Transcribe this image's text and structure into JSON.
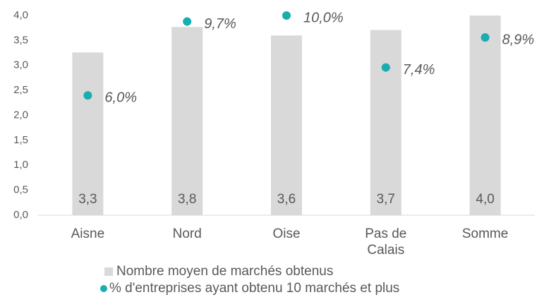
{
  "chart_data": {
    "type": "bar",
    "categories": [
      "Aisne",
      "Nord",
      "Oise",
      "Pas de Calais",
      "Somme"
    ],
    "series": [
      {
        "name": "Nombre moyen de marchés obtenus",
        "type": "bar",
        "color": "#d9d9d9",
        "values": [
          3.26,
          3.77,
          3.6,
          3.71,
          4.0
        ],
        "value_labels": [
          "3,3",
          "3,8",
          "3,6",
          "3,7",
          "4,0"
        ]
      },
      {
        "name": "% d'entreprises ayant obtenu 10 marchés et plus",
        "type": "scatter",
        "axis": "y2",
        "color": "#19adb0",
        "values": [
          6.0,
          9.7,
          10.0,
          7.4,
          8.9
        ],
        "value_labels": [
          "6,0%",
          "9,7%",
          "10,0%",
          "7,4%",
          "8,9%"
        ]
      }
    ],
    "ylim": [
      0,
      4
    ],
    "yticks": [
      {
        "value": 0,
        "label": "0,0"
      },
      {
        "value": 0.5,
        "label": "0,5"
      },
      {
        "value": 1,
        "label": "1,0"
      },
      {
        "value": 1.5,
        "label": "1,5"
      },
      {
        "value": 2,
        "label": "2,0"
      },
      {
        "value": 2.5,
        "label": "2,5"
      },
      {
        "value": 3,
        "label": "3,0"
      },
      {
        "value": 3.5,
        "label": "3,5"
      },
      {
        "value": 4,
        "label": "4,0"
      }
    ],
    "y2lim": [
      0,
      10
    ],
    "legend": "bottom"
  }
}
